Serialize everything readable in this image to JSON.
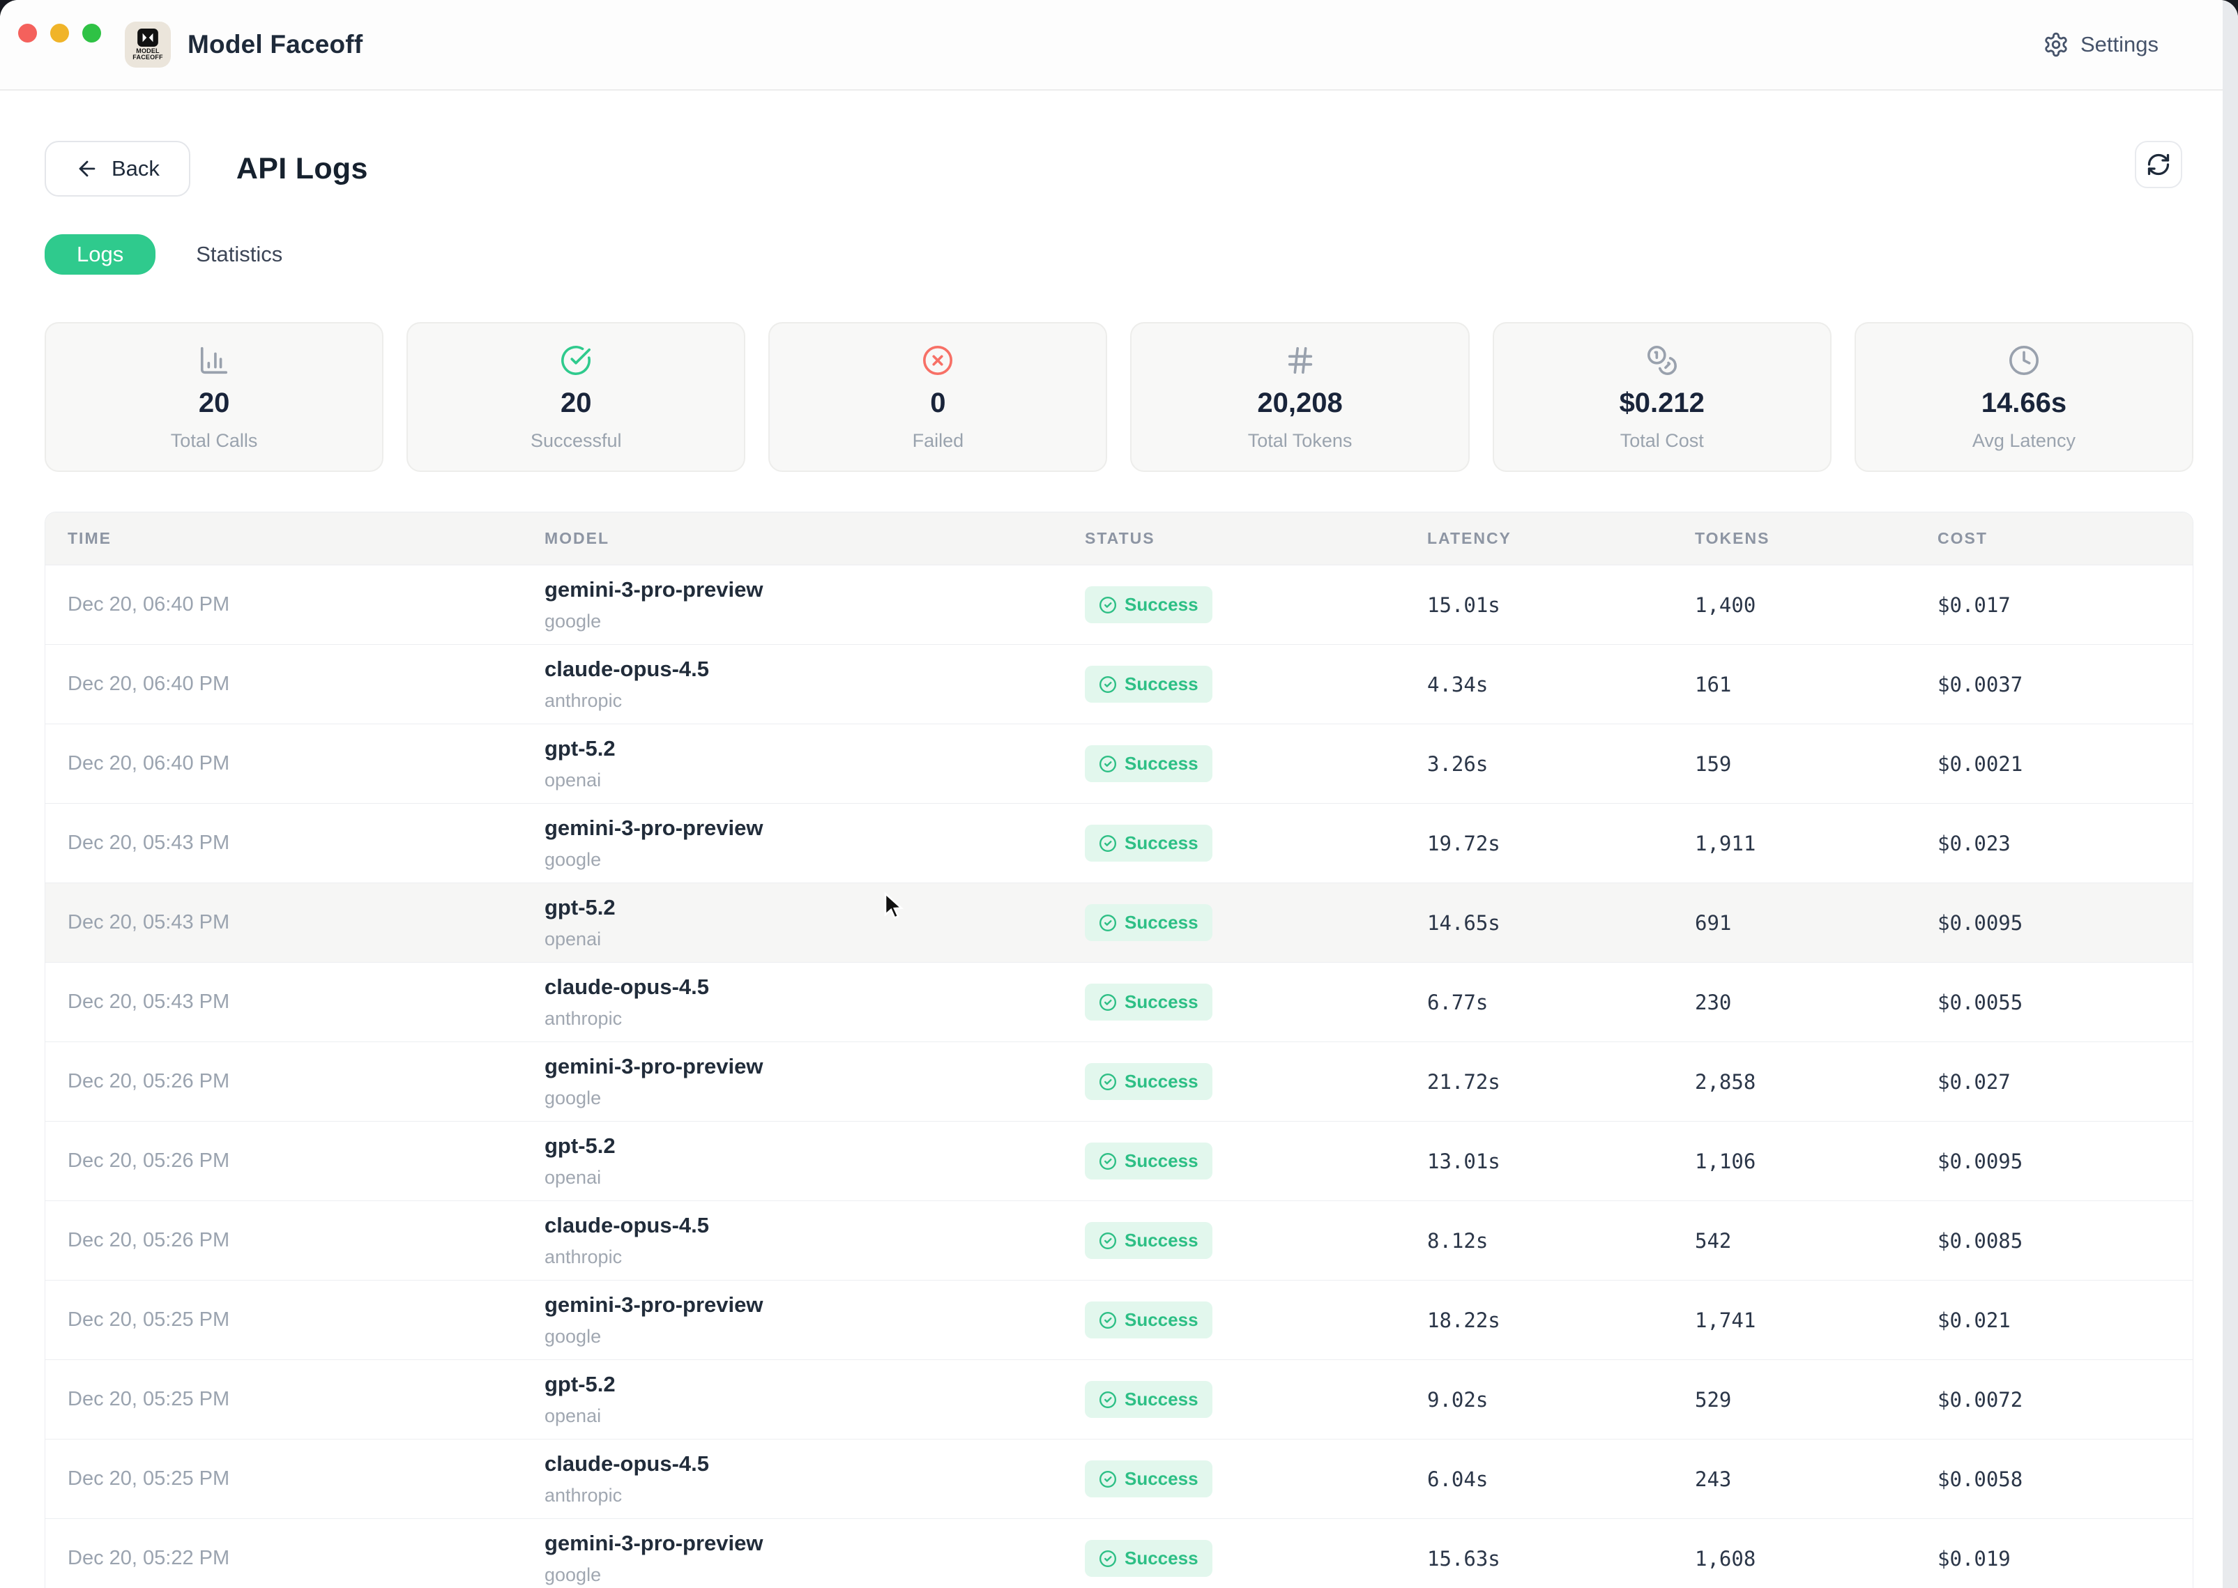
{
  "window": {
    "app_title": "Model Faceoff",
    "app_icon_line1": "MODEL",
    "app_icon_line2": "FACEOFF",
    "settings_label": "Settings"
  },
  "page": {
    "back_label": "Back",
    "title": "API Logs"
  },
  "tabs": {
    "logs_label": "Logs",
    "statistics_label": "Statistics"
  },
  "stats": [
    {
      "icon": "bar-chart-icon",
      "value": "20",
      "label": "Total Calls",
      "color": "#99a1ad"
    },
    {
      "icon": "check-circle-icon",
      "value": "20",
      "label": "Successful",
      "color": "#2fca8d"
    },
    {
      "icon": "x-circle-icon",
      "value": "0",
      "label": "Failed",
      "color": "#f77066"
    },
    {
      "icon": "hash-icon",
      "value": "20,208",
      "label": "Total Tokens",
      "color": "#99a1ad"
    },
    {
      "icon": "coins-icon",
      "value": "$0.212",
      "label": "Total Cost",
      "color": "#99a1ad"
    },
    {
      "icon": "clock-icon",
      "value": "14.66s",
      "label": "Avg Latency",
      "color": "#99a1ad"
    }
  ],
  "table": {
    "columns": [
      "TIME",
      "MODEL",
      "STATUS",
      "LATENCY",
      "TOKENS",
      "COST"
    ],
    "rows": [
      {
        "time": "Dec 20, 06:40 PM",
        "model": "gemini-3-pro-preview",
        "provider": "google",
        "status": "Success",
        "latency": "15.01s",
        "tokens": "1,400",
        "cost": "$0.017",
        "highlight": false
      },
      {
        "time": "Dec 20, 06:40 PM",
        "model": "claude-opus-4.5",
        "provider": "anthropic",
        "status": "Success",
        "latency": "4.34s",
        "tokens": "161",
        "cost": "$0.0037",
        "highlight": false
      },
      {
        "time": "Dec 20, 06:40 PM",
        "model": "gpt-5.2",
        "provider": "openai",
        "status": "Success",
        "latency": "3.26s",
        "tokens": "159",
        "cost": "$0.0021",
        "highlight": false
      },
      {
        "time": "Dec 20, 05:43 PM",
        "model": "gemini-3-pro-preview",
        "provider": "google",
        "status": "Success",
        "latency": "19.72s",
        "tokens": "1,911",
        "cost": "$0.023",
        "highlight": false
      },
      {
        "time": "Dec 20, 05:43 PM",
        "model": "gpt-5.2",
        "provider": "openai",
        "status": "Success",
        "latency": "14.65s",
        "tokens": "691",
        "cost": "$0.0095",
        "highlight": true
      },
      {
        "time": "Dec 20, 05:43 PM",
        "model": "claude-opus-4.5",
        "provider": "anthropic",
        "status": "Success",
        "latency": "6.77s",
        "tokens": "230",
        "cost": "$0.0055",
        "highlight": false
      },
      {
        "time": "Dec 20, 05:26 PM",
        "model": "gemini-3-pro-preview",
        "provider": "google",
        "status": "Success",
        "latency": "21.72s",
        "tokens": "2,858",
        "cost": "$0.027",
        "highlight": false
      },
      {
        "time": "Dec 20, 05:26 PM",
        "model": "gpt-5.2",
        "provider": "openai",
        "status": "Success",
        "latency": "13.01s",
        "tokens": "1,106",
        "cost": "$0.0095",
        "highlight": false
      },
      {
        "time": "Dec 20, 05:26 PM",
        "model": "claude-opus-4.5",
        "provider": "anthropic",
        "status": "Success",
        "latency": "8.12s",
        "tokens": "542",
        "cost": "$0.0085",
        "highlight": false
      },
      {
        "time": "Dec 20, 05:25 PM",
        "model": "gemini-3-pro-preview",
        "provider": "google",
        "status": "Success",
        "latency": "18.22s",
        "tokens": "1,741",
        "cost": "$0.021",
        "highlight": false
      },
      {
        "time": "Dec 20, 05:25 PM",
        "model": "gpt-5.2",
        "provider": "openai",
        "status": "Success",
        "latency": "9.02s",
        "tokens": "529",
        "cost": "$0.0072",
        "highlight": false
      },
      {
        "time": "Dec 20, 05:25 PM",
        "model": "claude-opus-4.5",
        "provider": "anthropic",
        "status": "Success",
        "latency": "6.04s",
        "tokens": "243",
        "cost": "$0.0058",
        "highlight": false
      },
      {
        "time": "Dec 20, 05:22 PM",
        "model": "gemini-3-pro-preview",
        "provider": "google",
        "status": "Success",
        "latency": "15.63s",
        "tokens": "1,608",
        "cost": "$0.019",
        "highlight": false
      }
    ]
  },
  "colors": {
    "accent_green": "#2fca8d",
    "badge_bg": "#e2f7ed",
    "badge_fg": "#2dbf85",
    "failed_red": "#f77066",
    "muted_gray": "#99a1ad"
  }
}
